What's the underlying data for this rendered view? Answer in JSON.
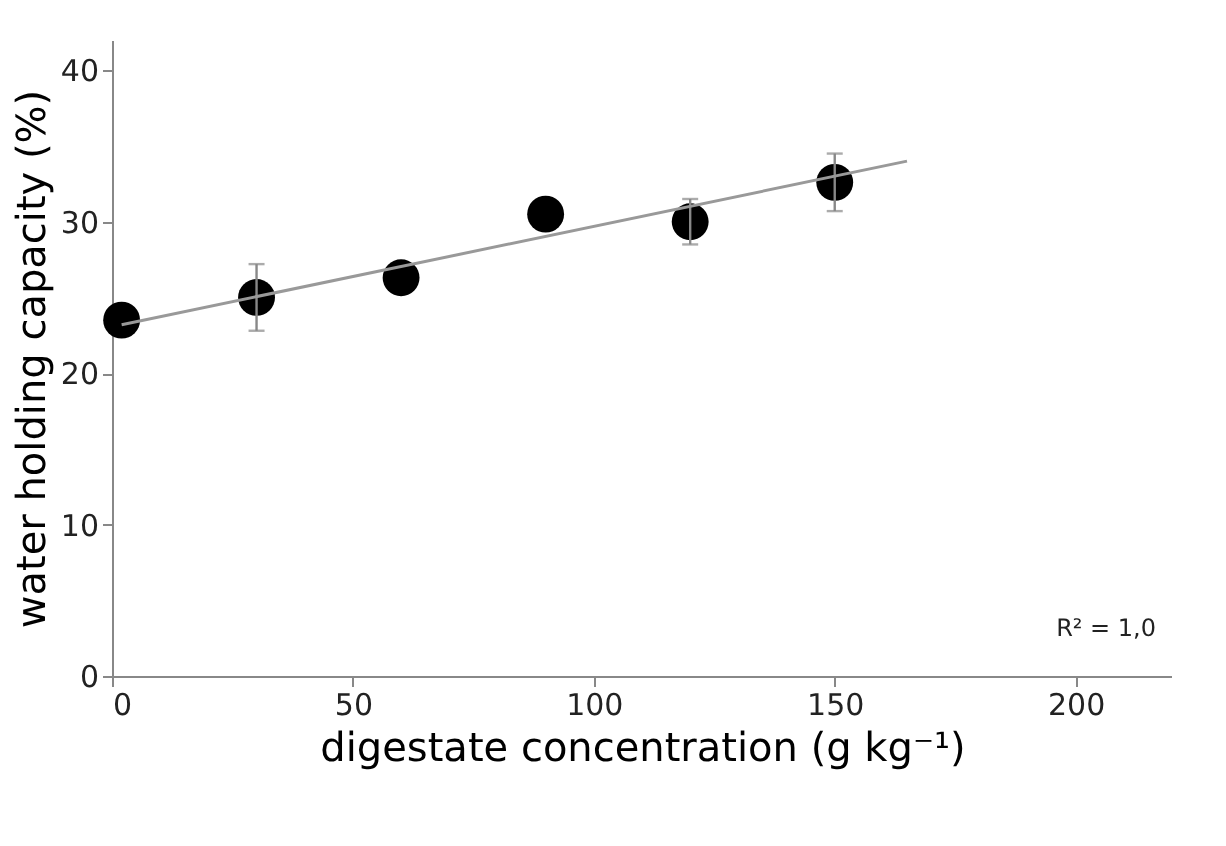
{
  "chart_data": {
    "type": "scatter",
    "xlabel": "digestate concentration (g kg⁻¹)",
    "ylabel": "water holding capacity (%)",
    "xlim": [
      0,
      220
    ],
    "xticks": [
      0,
      50,
      100,
      150,
      200
    ],
    "ylim": [
      0,
      42
    ],
    "yticks": [
      0,
      10,
      20,
      30,
      40
    ],
    "grid": false,
    "annotations": [
      "R² = 1,0"
    ],
    "series": [
      {
        "color": "#000000",
        "marker": "circle",
        "x": [
          2,
          30,
          60,
          90,
          120,
          150
        ],
        "values": [
          23.5,
          25.0,
          26.3,
          30.5,
          30.0,
          32.6
        ],
        "errors": [
          null,
          2.2,
          null,
          null,
          1.5,
          1.9
        ]
      },
      {
        "type": "line",
        "color": "#999999",
        "x": [
          2,
          165
        ],
        "values": [
          23.2,
          34.0
        ],
        "line_style": "solid",
        "marker": "none"
      }
    ]
  }
}
